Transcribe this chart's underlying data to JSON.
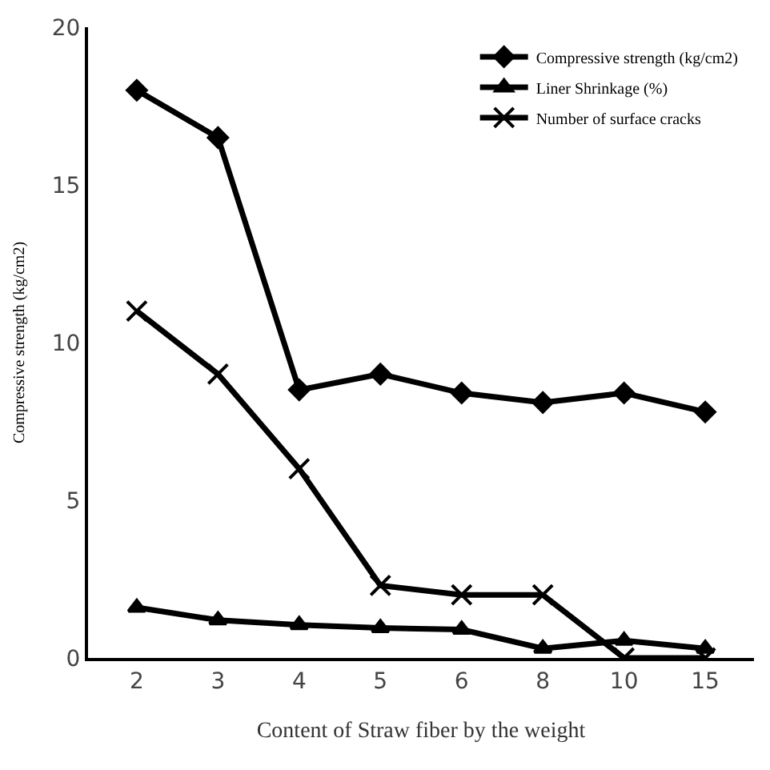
{
  "chart_data": {
    "type": "line",
    "categories": [
      "2",
      "3",
      "4",
      "5",
      "6",
      "8",
      "10",
      "15"
    ],
    "series": [
      {
        "name": "Compressive strength (kg/cm2)",
        "color": "#000000",
        "marker": "diamond",
        "values": [
          18.0,
          16.5,
          8.5,
          9.0,
          8.4,
          8.1,
          8.4,
          7.8
        ]
      },
      {
        "name": "Liner Shrinkage (%)",
        "color": "#000000",
        "marker": "triangle",
        "values": [
          1.6,
          1.2,
          1.05,
          0.95,
          0.9,
          0.3,
          0.55,
          0.3
        ]
      },
      {
        "name": "Number of surface cracks",
        "color": "#000000",
        "marker": "cross",
        "values": [
          11,
          9,
          6,
          2.3,
          2,
          2,
          0,
          0
        ]
      }
    ],
    "ylim": [
      0,
      20
    ],
    "yticks": [
      0,
      5,
      10,
      15,
      20
    ],
    "xlabel": "Content of Straw fiber by the weight",
    "ylabel": "Compressive strength (kg/cm2)",
    "legend": "top right",
    "line_style": "solid"
  }
}
